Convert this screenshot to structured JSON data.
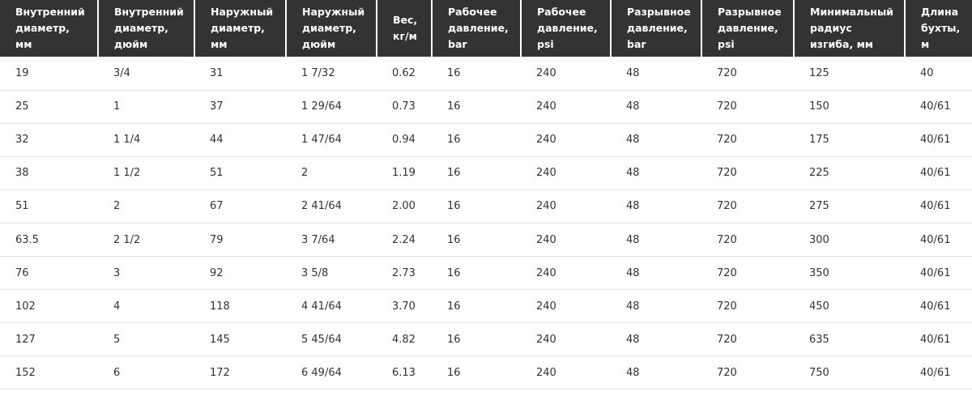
{
  "table": {
    "header": [
      "Внутренний диаметр, мм",
      "Внутренний диаметр, дюйм",
      "Наружный диаметр, мм",
      "Наружный диаметр, дюйм",
      "Вес, кг/м",
      "Рабочее давление, bar",
      "Рабочее давление, psi",
      "Разрывное давление, bar",
      "Разрывное давление, psi",
      "Минимальный радиус изгиба, мм",
      "Длина бухты, м"
    ],
    "rows": [
      [
        "19",
        "3/4",
        "31",
        "1 7/32",
        "0.62",
        "16",
        "240",
        "48",
        "720",
        "125",
        "40"
      ],
      [
        "25",
        "1",
        "37",
        "1 29/64",
        "0.73",
        "16",
        "240",
        "48",
        "720",
        "150",
        "40/61"
      ],
      [
        "32",
        "1 1/4",
        "44",
        "1 47/64",
        "0.94",
        "16",
        "240",
        "48",
        "720",
        "175",
        "40/61"
      ],
      [
        "38",
        "1 1/2",
        "51",
        "2",
        "1.19",
        "16",
        "240",
        "48",
        "720",
        "225",
        "40/61"
      ],
      [
        "51",
        "2",
        "67",
        "2 41/64",
        "2.00",
        "16",
        "240",
        "48",
        "720",
        "275",
        "40/61"
      ],
      [
        "63.5",
        "2 1/2",
        "79",
        "3 7/64",
        "2.24",
        "16",
        "240",
        "48",
        "720",
        "300",
        "40/61"
      ],
      [
        "76",
        "3",
        "92",
        "3 5/8",
        "2.73",
        "16",
        "240",
        "48",
        "720",
        "350",
        "40/61"
      ],
      [
        "102",
        "4",
        "118",
        "4 41/64",
        "3.70",
        "16",
        "240",
        "48",
        "720",
        "450",
        "40/61"
      ],
      [
        "127",
        "5",
        "145",
        "5 45/64",
        "4.82",
        "16",
        "240",
        "48",
        "720",
        "635",
        "40/61"
      ],
      [
        "152",
        "6",
        "172",
        "6 49/64",
        "6.13",
        "16",
        "240",
        "48",
        "720",
        "750",
        "40/61"
      ]
    ]
  }
}
